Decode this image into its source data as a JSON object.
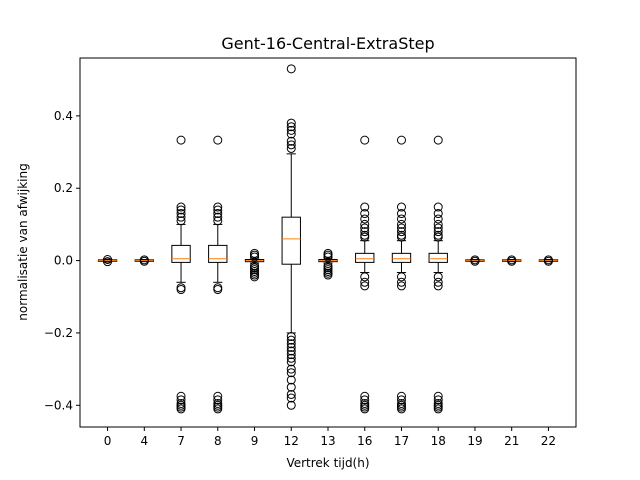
{
  "chart_data": {
    "type": "boxplot",
    "title": "Gent-16-Central-ExtraStep",
    "xlabel": "Vertrek tijd(h)",
    "ylabel": "normalisatie van afwijking",
    "ylim": [
      -0.46,
      0.56
    ],
    "yticks": [
      -0.4,
      -0.2,
      0.0,
      0.2,
      0.4
    ],
    "ytick_labels": [
      "−0.4",
      "−0.2",
      "0.0",
      "0.2",
      "0.4"
    ],
    "grid": false,
    "box_color": "#000000",
    "median_color": "#ff7f0e",
    "categories": [
      "0",
      "4",
      "7",
      "8",
      "9",
      "12",
      "13",
      "16",
      "17",
      "18",
      "19",
      "21",
      "22"
    ],
    "boxes": [
      {
        "label": "0",
        "q1": -0.002,
        "median": 0.0,
        "q3": 0.002,
        "whislo": -0.004,
        "whishi": 0.004,
        "fliers": [
          -0.003,
          0.003
        ]
      },
      {
        "label": "4",
        "q1": -0.002,
        "median": 0.0,
        "q3": 0.002,
        "whislo": -0.003,
        "whishi": 0.003,
        "fliers": [
          -0.002,
          0.002
        ]
      },
      {
        "label": "7",
        "q1": -0.005,
        "median": 0.005,
        "q3": 0.042,
        "whislo": -0.06,
        "whishi": 0.1,
        "fliers": [
          0.333,
          0.148,
          0.14,
          0.13,
          0.12,
          0.11,
          -0.075,
          -0.08,
          -0.375,
          -0.385,
          -0.395,
          -0.4,
          -0.405,
          -0.41
        ]
      },
      {
        "label": "8",
        "q1": -0.005,
        "median": 0.005,
        "q3": 0.042,
        "whislo": -0.06,
        "whishi": 0.1,
        "fliers": [
          0.333,
          0.148,
          0.14,
          0.13,
          0.12,
          0.11,
          -0.075,
          -0.08,
          -0.375,
          -0.385,
          -0.395,
          -0.4,
          -0.405,
          -0.41
        ]
      },
      {
        "label": "9",
        "q1": -0.003,
        "median": 0.0,
        "q3": 0.003,
        "whislo": -0.007,
        "whishi": 0.007,
        "fliers": [
          0.02,
          0.015,
          0.01,
          -0.015,
          -0.02,
          -0.025,
          -0.03,
          -0.035,
          -0.04,
          -0.045
        ]
      },
      {
        "label": "12",
        "q1": -0.01,
        "median": 0.06,
        "q3": 0.12,
        "whislo": -0.2,
        "whishi": 0.295,
        "fliers": [
          0.53,
          0.38,
          0.37,
          0.36,
          0.35,
          0.33,
          0.32,
          0.31,
          -0.21,
          -0.22,
          -0.23,
          -0.24,
          -0.25,
          -0.26,
          -0.27,
          -0.28,
          -0.3,
          -0.31,
          -0.33,
          -0.35,
          -0.37,
          -0.38,
          -0.4
        ]
      },
      {
        "label": "13",
        "q1": -0.003,
        "median": 0.0,
        "q3": 0.003,
        "whislo": -0.007,
        "whishi": 0.007,
        "fliers": [
          0.02,
          0.015,
          0.01,
          -0.015,
          -0.02,
          -0.025,
          -0.03,
          -0.035,
          -0.04
        ]
      },
      {
        "label": "16",
        "q1": -0.005,
        "median": 0.005,
        "q3": 0.02,
        "whislo": -0.033,
        "whishi": 0.055,
        "fliers": [
          0.333,
          0.148,
          0.13,
          0.115,
          0.1,
          0.09,
          0.08,
          0.07,
          0.065,
          -0.045,
          -0.06,
          -0.07,
          -0.375,
          -0.385,
          -0.395,
          -0.4,
          -0.405,
          -0.41
        ]
      },
      {
        "label": "17",
        "q1": -0.005,
        "median": 0.005,
        "q3": 0.02,
        "whislo": -0.033,
        "whishi": 0.055,
        "fliers": [
          0.333,
          0.148,
          0.13,
          0.115,
          0.1,
          0.09,
          0.08,
          0.07,
          0.065,
          -0.045,
          -0.06,
          -0.07,
          -0.375,
          -0.385,
          -0.395,
          -0.4,
          -0.405,
          -0.41
        ]
      },
      {
        "label": "18",
        "q1": -0.005,
        "median": 0.005,
        "q3": 0.02,
        "whislo": -0.033,
        "whishi": 0.055,
        "fliers": [
          0.333,
          0.148,
          0.13,
          0.115,
          0.1,
          0.09,
          0.08,
          0.07,
          0.065,
          -0.045,
          -0.06,
          -0.07,
          -0.375,
          -0.385,
          -0.395,
          -0.4,
          -0.405,
          -0.41
        ]
      },
      {
        "label": "19",
        "q1": -0.002,
        "median": 0.0,
        "q3": 0.002,
        "whislo": -0.003,
        "whishi": 0.003,
        "fliers": [
          -0.002,
          0.002
        ]
      },
      {
        "label": "21",
        "q1": -0.002,
        "median": 0.0,
        "q3": 0.002,
        "whislo": -0.003,
        "whishi": 0.003,
        "fliers": [
          -0.002,
          0.002
        ]
      },
      {
        "label": "22",
        "q1": -0.002,
        "median": 0.0,
        "q3": 0.002,
        "whislo": -0.003,
        "whishi": 0.003,
        "fliers": [
          -0.002,
          0.002
        ]
      }
    ]
  }
}
